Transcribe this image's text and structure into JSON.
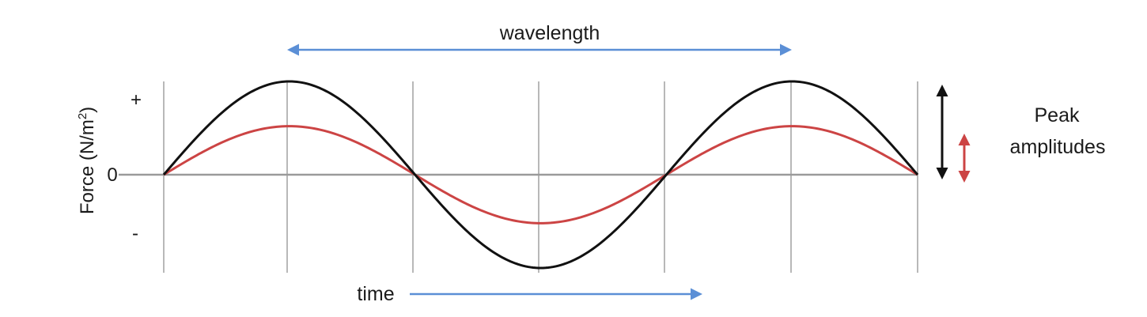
{
  "labels": {
    "wavelength": "wavelength",
    "time": "time",
    "y_axis_prefix": "Force (N/m",
    "y_axis_superscript": "2",
    "y_axis_suffix": ")",
    "peak_line1": "Peak",
    "peak_line2": "amplitudes",
    "tick_plus": "+",
    "tick_zero": "0",
    "tick_minus": "-"
  },
  "colors": {
    "large_wave": "#111111",
    "small_wave": "#cc4444",
    "arrow_blue": "#5b8fd6",
    "peak_arrow_black": "#111111",
    "peak_arrow_red": "#cc4444",
    "grid": "#b8b8b8"
  },
  "waves": {
    "large_amplitude": 1.0,
    "small_amplitude": 0.52,
    "cycles": 1.5
  }
}
